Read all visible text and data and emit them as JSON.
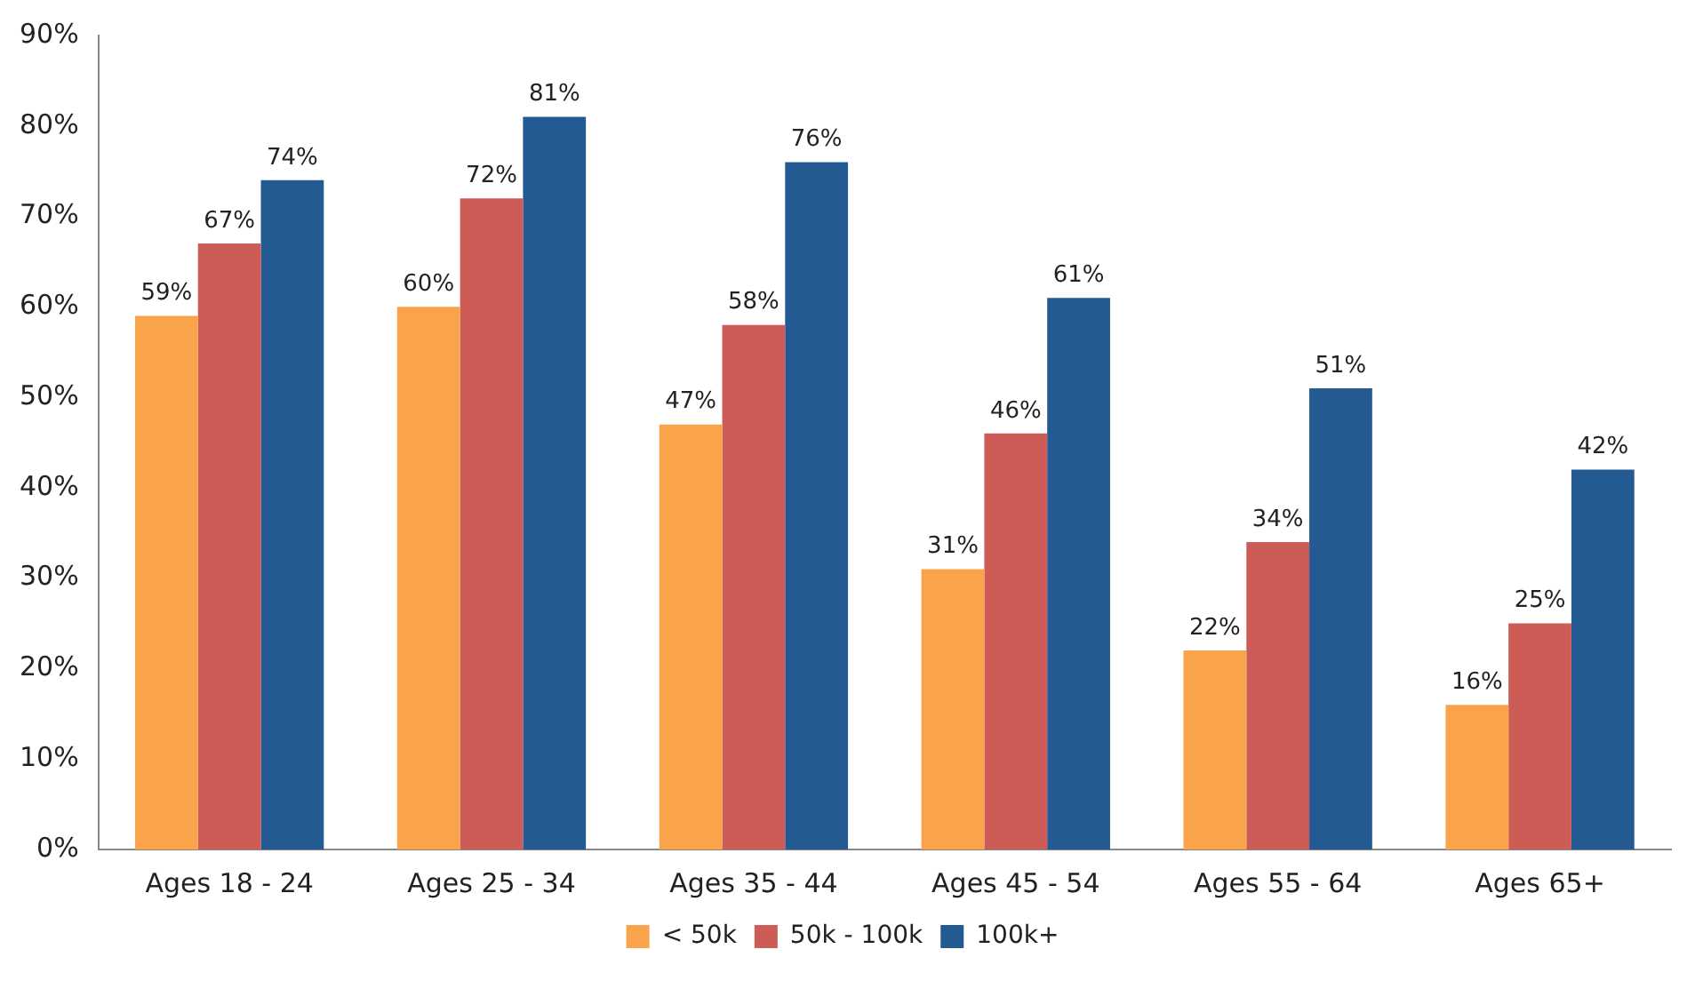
{
  "chart_data": {
    "type": "bar",
    "categories": [
      "Ages 18 - 24",
      "Ages 25 - 34",
      "Ages 35 - 44",
      "Ages 45 - 54",
      "Ages 55 - 64",
      "Ages 65+"
    ],
    "series": [
      {
        "name": "< 50k",
        "color": "#f9a44a",
        "values": [
          59,
          60,
          47,
          31,
          22,
          16
        ],
        "value_labels": [
          "59%",
          "60%",
          "47%",
          "31%",
          "22%",
          "16%"
        ]
      },
      {
        "name": "50k - 100k",
        "color": "#cd5c57",
        "values": [
          67,
          72,
          58,
          46,
          34,
          25
        ],
        "value_labels": [
          "67%",
          "72%",
          "58%",
          "46%",
          "34%",
          "25%"
        ]
      },
      {
        "name": "100k+",
        "color": "#245a92",
        "values": [
          74,
          81,
          76,
          61,
          51,
          42
        ],
        "value_labels": [
          "74%",
          "81%",
          "76%",
          "61%",
          "51%",
          "42%"
        ]
      }
    ],
    "ylim": [
      0,
      90
    ],
    "yticks": [
      {
        "value": 0,
        "label": "0%"
      },
      {
        "value": 10,
        "label": "10%"
      },
      {
        "value": 20,
        "label": "20%"
      },
      {
        "value": 30,
        "label": "30%"
      },
      {
        "value": 40,
        "label": "40%"
      },
      {
        "value": 50,
        "label": "50%"
      },
      {
        "value": 60,
        "label": "60%"
      },
      {
        "value": 70,
        "label": "70%"
      },
      {
        "value": 80,
        "label": "80%"
      },
      {
        "value": 90,
        "label": "90%"
      }
    ],
    "grid": false,
    "legend": "bottom"
  }
}
